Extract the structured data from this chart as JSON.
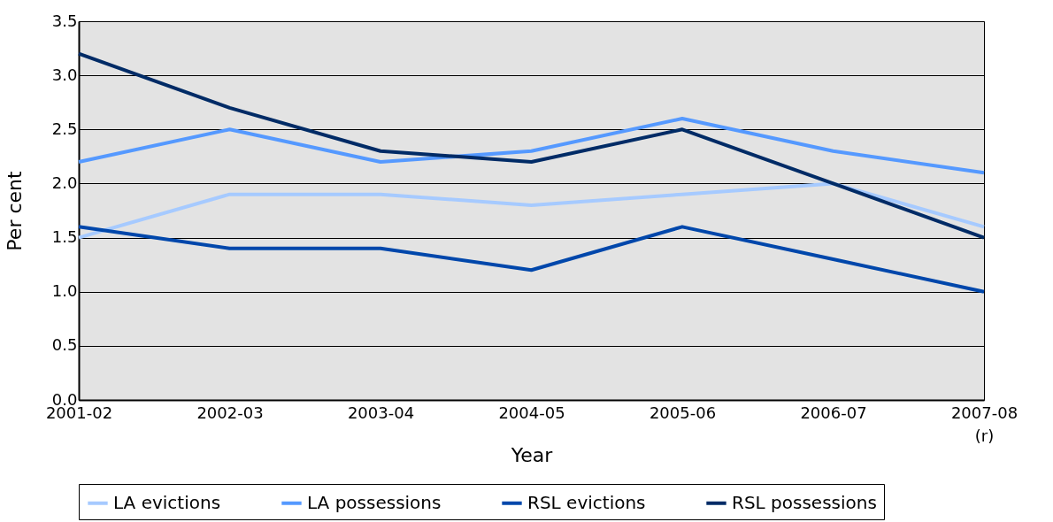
{
  "chart_data": {
    "type": "line",
    "xlabel": "Year",
    "ylabel": "Per cent",
    "categories": [
      "2001-02",
      "2002-03",
      "2003-04",
      "2004-05",
      "2005-06",
      "2006-07",
      "2007-08\n(r)"
    ],
    "series": [
      {
        "name": "LA evictions",
        "color": "#a6caff",
        "values": [
          1.5,
          1.9,
          1.9,
          1.8,
          1.9,
          2.0,
          1.6
        ]
      },
      {
        "name": "LA possessions",
        "color": "#5599ff",
        "values": [
          2.2,
          2.5,
          2.2,
          2.3,
          2.6,
          2.3,
          2.1
        ]
      },
      {
        "name": "RSL evictions",
        "color": "#0047ab",
        "values": [
          1.6,
          1.4,
          1.4,
          1.2,
          1.6,
          1.3,
          1.0
        ]
      },
      {
        "name": "RSL possessions",
        "color": "#002b66",
        "values": [
          3.2,
          2.7,
          2.3,
          2.2,
          2.5,
          2.0,
          1.5
        ]
      }
    ],
    "ylim": [
      0,
      3.5
    ],
    "yticks": [
      {
        "value": 0,
        "label": "0.0"
      },
      {
        "value": 0.5,
        "label": "0.5"
      },
      {
        "value": 1,
        "label": "1.0"
      },
      {
        "value": 1.5,
        "label": "1.5"
      },
      {
        "value": 2,
        "label": "2.0"
      },
      {
        "value": 2.5,
        "label": "2.5"
      },
      {
        "value": 3,
        "label": "3.0"
      },
      {
        "value": 3.5,
        "label": "3.5"
      }
    ],
    "grid": "y",
    "legend": "bottom",
    "marker": "none",
    "line_style": "solid"
  }
}
